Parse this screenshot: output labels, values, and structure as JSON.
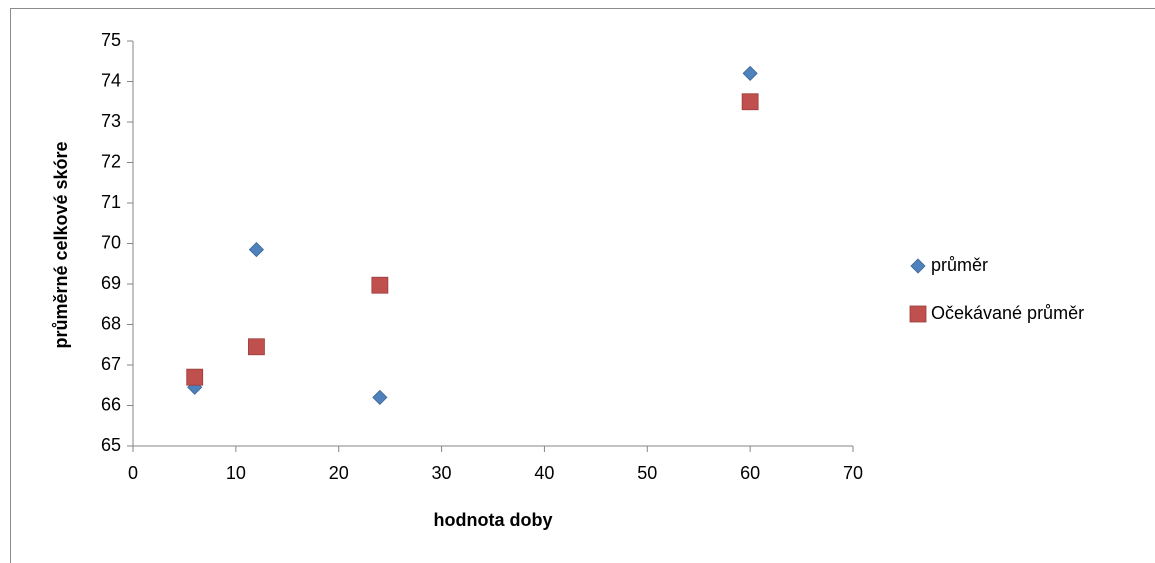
{
  "chart_data": {
    "type": "scatter",
    "x_label": "hodnota doby",
    "y_label": "průměrné celkové skóre",
    "x": [
      6,
      12,
      24,
      60
    ],
    "series": [
      {
        "name": "průměr",
        "color": "#4f81bd",
        "marker": "diamond",
        "values": [
          66.45,
          69.85,
          66.2,
          74.2
        ]
      },
      {
        "name": "Očekávané průměr",
        "color": "#c0504d",
        "marker": "square",
        "values": [
          66.7,
          67.45,
          68.97,
          73.5
        ]
      }
    ],
    "xlim": [
      0,
      70
    ],
    "xticks": [
      0,
      10,
      20,
      30,
      40,
      50,
      60,
      70
    ],
    "ylim": [
      65,
      75
    ],
    "yticks": [
      65,
      66,
      67,
      68,
      69,
      70,
      71,
      72,
      73,
      74,
      75
    ],
    "grid": false,
    "legend": "right"
  }
}
